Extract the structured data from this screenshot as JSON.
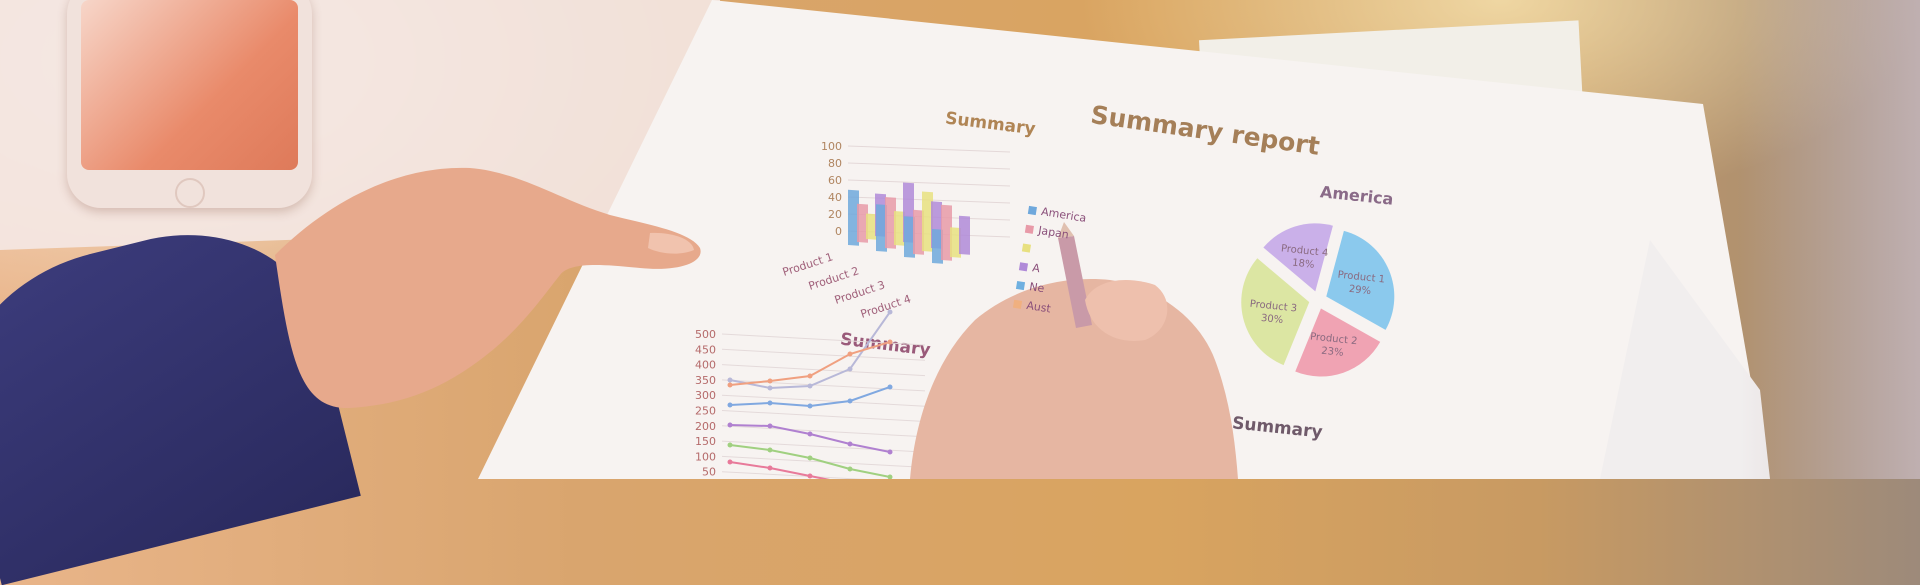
{
  "report": {
    "title": "Summary report",
    "bar_section_title": "Summary",
    "line_section_title": "Summary",
    "bottom_section_title": "Summary",
    "bar_y_ticks": [
      "100",
      "80",
      "60",
      "40",
      "20",
      "0"
    ],
    "bar_categories": [
      "Product 1",
      "Product 2",
      "Product 3",
      "Product 4"
    ],
    "legend": [
      "America",
      "Japan",
      "",
      "A",
      "Ne",
      "Aust"
    ],
    "legend_colors": [
      "#6fa8dc",
      "#e89aa8",
      "#e8e080",
      "#b08ad8",
      "#6fb0e0",
      "#f0b080"
    ],
    "line_y_ticks": [
      "500",
      "450",
      "400",
      "350",
      "300",
      "250",
      "200",
      "150",
      "100",
      "50"
    ],
    "pie": {
      "title": "America",
      "slices": [
        {
          "label": "Product 1",
          "pct": "29%",
          "value": 29,
          "color": "#7ec4ec"
        },
        {
          "label": "Product 2",
          "pct": "23%",
          "value": 23,
          "color": "#ee9aac"
        },
        {
          "label": "Product 3",
          "pct": "30%",
          "value": 30,
          "color": "#d8e49a"
        },
        {
          "label": "Product 4",
          "pct": "18%",
          "value": 18,
          "color": "#c4a8e8"
        }
      ]
    }
  }
}
